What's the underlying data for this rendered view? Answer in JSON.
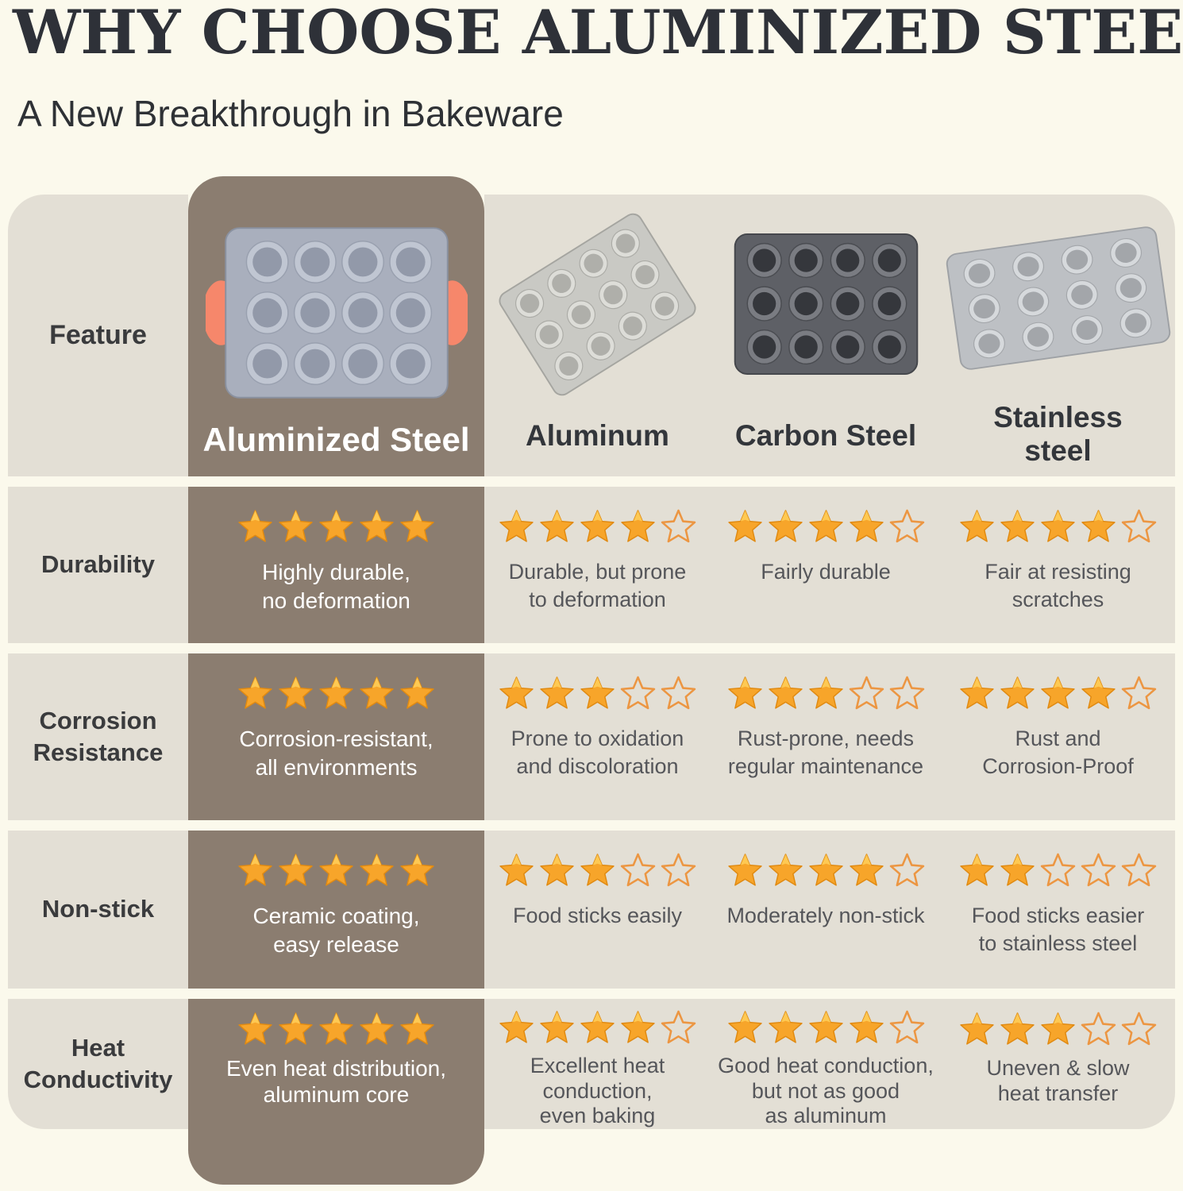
{
  "page": {
    "title": "WHY CHOOSE ALUMINIZED STEEL?",
    "subtitle": "A New Breakthrough in Bakeware"
  },
  "colors": {
    "background": "#FBF9EC",
    "row_background": "#E3DFD5",
    "highlight_column": "#8B7D70",
    "star_filled": "#F7A52A",
    "star_filled_edge": "#E08A12",
    "star_empty_outline": "#EC9642",
    "title_text": "#2E3138",
    "body_text": "#55565A",
    "highlight_text": "#FFFFFF",
    "handle_accent": "#F6876B"
  },
  "table": {
    "feature_header": "Feature",
    "columns": [
      {
        "id": "aluminized-steel",
        "label": "Aluminized Steel",
        "highlighted": true
      },
      {
        "id": "aluminum",
        "label": "Aluminum",
        "highlighted": false
      },
      {
        "id": "carbon-steel",
        "label": "Carbon Steel",
        "highlighted": false
      },
      {
        "id": "stainless-steel",
        "label": "Stainless\nsteel",
        "highlighted": false
      }
    ],
    "rows": [
      {
        "feature": "Durability",
        "cells": [
          {
            "rating": 5,
            "max": 5,
            "text": "Highly durable,\nno deformation"
          },
          {
            "rating": 4,
            "max": 5,
            "text": "Durable, but prone\nto deformation"
          },
          {
            "rating": 4,
            "max": 5,
            "text": "Fairly durable"
          },
          {
            "rating": 4,
            "max": 5,
            "text": "Fair at resisting\nscratches"
          }
        ]
      },
      {
        "feature": "Corrosion\nResistance",
        "cells": [
          {
            "rating": 5,
            "max": 5,
            "text": "Corrosion-resistant,\nall environments"
          },
          {
            "rating": 3,
            "max": 5,
            "text": "Prone to oxidation\nand discoloration"
          },
          {
            "rating": 3,
            "max": 5,
            "text": "Rust-prone, needs\nregular maintenance"
          },
          {
            "rating": 4,
            "max": 5,
            "text": "Rust and\nCorrosion-Proof"
          }
        ]
      },
      {
        "feature": "Non-stick",
        "cells": [
          {
            "rating": 5,
            "max": 5,
            "text": "Ceramic coating,\neasy release"
          },
          {
            "rating": 3,
            "max": 5,
            "text": "Food sticks easily"
          },
          {
            "rating": 4,
            "max": 5,
            "text": "Moderately non-stick"
          },
          {
            "rating": 2,
            "max": 5,
            "text": "Food sticks easier\nto stainless steel"
          }
        ]
      },
      {
        "feature": "Heat\nConductivity",
        "cells": [
          {
            "rating": 5,
            "max": 5,
            "text": "Even heat distribution,\naluminum core"
          },
          {
            "rating": 4,
            "max": 5,
            "text": "Excellent heat\nconduction,\neven baking"
          },
          {
            "rating": 4,
            "max": 5,
            "text": "Good heat conduction,\nbut not as good\nas aluminum"
          },
          {
            "rating": 3,
            "max": 5,
            "text": "Uneven & slow\nheat transfer"
          }
        ]
      }
    ]
  },
  "chart_data": {
    "type": "table",
    "title": "WHY CHOOSE ALUMINIZED STEEL?",
    "subtitle": "A New Breakthrough in Bakeware",
    "columns": [
      "Aluminized Steel",
      "Aluminum",
      "Carbon Steel",
      "Stainless steel"
    ],
    "rows": [
      "Durability",
      "Corrosion Resistance",
      "Non-stick",
      "Heat Conductivity"
    ],
    "ratings_max": 5,
    "ratings": [
      [
        5,
        4,
        4,
        4
      ],
      [
        5,
        3,
        3,
        4
      ],
      [
        5,
        3,
        4,
        2
      ],
      [
        5,
        4,
        4,
        3
      ]
    ],
    "notes": [
      [
        "Highly durable, no deformation",
        "Durable, but prone to deformation",
        "Fairly durable",
        "Fair at resisting scratches"
      ],
      [
        "Corrosion-resistant, all environments",
        "Prone to oxidation and discoloration",
        "Rust-prone, needs regular maintenance",
        "Rust and Corrosion-Proof"
      ],
      [
        "Ceramic coating, easy release",
        "Food sticks easily",
        "Moderately non-stick",
        "Food sticks easier to stainless steel"
      ],
      [
        "Even heat distribution, aluminum core",
        "Excellent heat conduction, even baking",
        "Good heat conduction, but not as good as aluminum",
        "Uneven & slow heat transfer"
      ]
    ],
    "legend_position": "none",
    "grid": false
  }
}
